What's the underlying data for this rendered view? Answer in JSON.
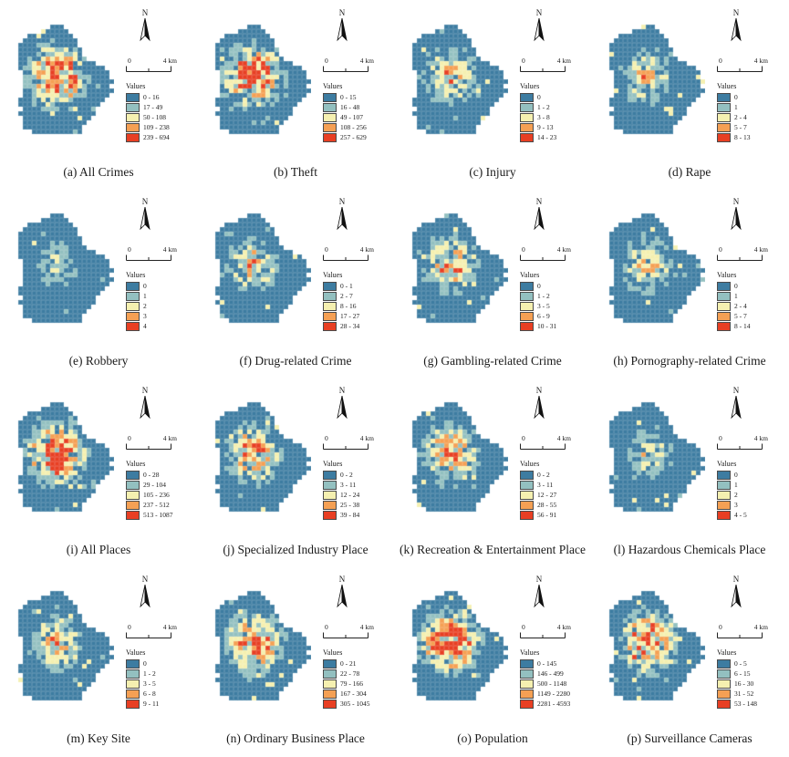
{
  "figure": {
    "north_label": "N",
    "legend_title": "Values",
    "scalebar": {
      "zero_label": "0",
      "distance_label": "4 km"
    }
  },
  "colors": {
    "classes": [
      "#3d7ca1",
      "#93c0c0",
      "#f5f0b0",
      "#f5a054",
      "#e83f23"
    ],
    "swatch_border": "#4a4a4a",
    "grid_line": "rgba(255,255,255,0.22)"
  },
  "panels": [
    {
      "id": "a",
      "caption": "(a) All Crimes",
      "breaks": [
        "0 - 16",
        "17 - 49",
        "50 - 108",
        "109 - 238",
        "239 - 694"
      ],
      "density": 1.05,
      "scatter": 1.2,
      "seed": 1
    },
    {
      "id": "b",
      "caption": "(b) Theft",
      "breaks": [
        "0 - 15",
        "16 - 48",
        "49 - 107",
        "108 - 256",
        "257 - 629"
      ],
      "density": 1.0,
      "scatter": 1.1,
      "seed": 2
    },
    {
      "id": "c",
      "caption": "(c) Injury",
      "breaks": [
        "0",
        "1 - 2",
        "3 - 8",
        "9 - 13",
        "14 - 23"
      ],
      "density": 0.55,
      "scatter": 1.3,
      "seed": 3
    },
    {
      "id": "d",
      "caption": "(d) Rape",
      "breaks": [
        "0",
        "1",
        "2 - 4",
        "5 - 7",
        "8 - 13"
      ],
      "density": 0.5,
      "scatter": 0.8,
      "seed": 4
    },
    {
      "id": "e",
      "caption": "(e) Robbery",
      "breaks": [
        "0",
        "1",
        "2",
        "3",
        "4"
      ],
      "density": 0.32,
      "scatter": 0.5,
      "seed": 5
    },
    {
      "id": "f",
      "caption": "(f) Drug-related Crime",
      "breaks": [
        "0 - 1",
        "2 - 7",
        "8 - 16",
        "17 - 27",
        "28 - 34"
      ],
      "density": 0.55,
      "scatter": 0.8,
      "seed": 6
    },
    {
      "id": "g",
      "caption": "(g) Gambling-related Crime",
      "breaks": [
        "0",
        "1 - 2",
        "3 - 5",
        "6 - 9",
        "10 - 31"
      ],
      "density": 0.65,
      "scatter": 1.2,
      "seed": 7
    },
    {
      "id": "h",
      "caption": "(h) Pornography-related Crime",
      "breaks": [
        "0",
        "1",
        "2 - 4",
        "5 - 7",
        "8 - 14"
      ],
      "density": 0.5,
      "scatter": 0.7,
      "seed": 8
    },
    {
      "id": "i",
      "caption": "(i) All Places",
      "breaks": [
        "0 - 28",
        "29 - 104",
        "105 - 236",
        "237 - 512",
        "513 - 1087"
      ],
      "density": 1.0,
      "scatter": 1.2,
      "seed": 9
    },
    {
      "id": "j",
      "caption": "(j) Specialized Industry Place",
      "breaks": [
        "0 - 2",
        "3 - 11",
        "12 - 24",
        "25 - 38",
        "39 - 84"
      ],
      "density": 0.7,
      "scatter": 0.9,
      "seed": 10
    },
    {
      "id": "k",
      "caption": "(k) Recreation & Entertainment Place",
      "breaks": [
        "0 - 2",
        "3 - 11",
        "12 - 27",
        "28 - 55",
        "56 - 91"
      ],
      "density": 0.7,
      "scatter": 0.9,
      "seed": 11
    },
    {
      "id": "l",
      "caption": "(l) Hazardous Chemicals Place",
      "breaks": [
        "0",
        "1",
        "2",
        "3",
        "4 - 5"
      ],
      "density": 0.42,
      "scatter": 1.0,
      "seed": 12
    },
    {
      "id": "m",
      "caption": "(m) Key Site",
      "breaks": [
        "0",
        "1 - 2",
        "3 - 5",
        "6 - 8",
        "9 - 11"
      ],
      "density": 0.55,
      "scatter": 0.9,
      "seed": 13
    },
    {
      "id": "n",
      "caption": "(n) Ordinary Business Place",
      "breaks": [
        "0 - 21",
        "22 - 78",
        "79 - 166",
        "167 - 304",
        "305 - 1045"
      ],
      "density": 0.85,
      "scatter": 1.1,
      "seed": 14
    },
    {
      "id": "o",
      "caption": "(o) Population",
      "breaks": [
        "0 - 145",
        "146 - 499",
        "500 - 1148",
        "1149 - 2280",
        "2281 - 4593"
      ],
      "density": 1.0,
      "scatter": 1.3,
      "seed": 15
    },
    {
      "id": "p",
      "caption": "(p) Surveillance Cameras",
      "breaks": [
        "0 - 5",
        "6 - 15",
        "16 - 30",
        "31 - 52",
        "53 - 148"
      ],
      "density": 0.95,
      "scatter": 1.2,
      "seed": 16
    }
  ]
}
